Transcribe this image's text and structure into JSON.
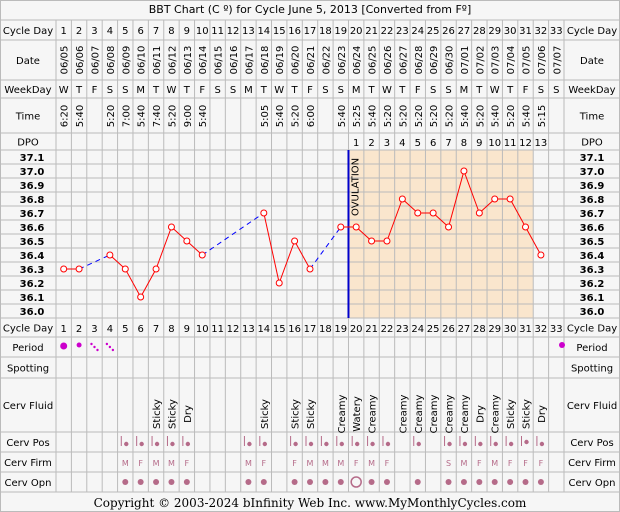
{
  "title": "BBT Chart (C º) for Cycle June 5, 2013  [Converted from Fº]",
  "footer": "Copyright © 2003-2024 bInfinity Web Inc.     www.MyMonthlyCycles.com",
  "row_labels": {
    "cycle_day": "Cycle Day",
    "date": "Date",
    "weekday": "WeekDay",
    "time": "Time",
    "dpo": "DPO",
    "period": "Period",
    "spotting": "Spotting",
    "cerv_fluid": "Cerv Fluid",
    "cerv_pos": "Cerv Pos",
    "cerv_firm": "Cerv Firm",
    "cerv_opn": "Cerv Opn"
  },
  "ovulation_label": "OVULATION",
  "colors": {
    "background": "#F6F6F6",
    "grid": "#BBBBBB",
    "luteal_fill": "#FAE6CD",
    "temp_line": "#FF0000",
    "marker_fill": "#FFFFFF",
    "gap_line": "#0000FF",
    "ovulation_line": "#0000CC",
    "period_dot": "#CC00CC",
    "symptom_dot": "#B56B89"
  },
  "chart_data": {
    "type": "line",
    "title": "BBT Chart (C º) for Cycle June 5, 2013  [Converted from Fº]",
    "xlabel": "Cycle Day",
    "ylabel": "",
    "ylim": [
      36.0,
      37.1
    ],
    "y_ticks": [
      36.0,
      36.1,
      36.2,
      36.3,
      36.4,
      36.5,
      36.6,
      36.7,
      36.8,
      36.9,
      37.0,
      37.1
    ],
    "grid": true,
    "ovulation_day": 19,
    "cycle_days": [
      1,
      2,
      3,
      4,
      5,
      6,
      7,
      8,
      9,
      10,
      11,
      12,
      13,
      14,
      15,
      16,
      17,
      18,
      19,
      20,
      21,
      22,
      23,
      24,
      25,
      26,
      27,
      28,
      29,
      30,
      31,
      32,
      33
    ],
    "dates": [
      "06/05",
      "06/06",
      "06/07",
      "06/08",
      "06/09",
      "06/10",
      "06/11",
      "06/12",
      "06/13",
      "06/14",
      "06/15",
      "06/16",
      "06/17",
      "06/18",
      "06/19",
      "06/20",
      "06/21",
      "06/22",
      "06/23",
      "06/24",
      "06/25",
      "06/26",
      "06/27",
      "06/28",
      "06/29",
      "06/30",
      "07/01",
      "07/02",
      "07/03",
      "07/04",
      "07/05",
      "07/06",
      "07/07"
    ],
    "weekdays": [
      "W",
      "T",
      "F",
      "S",
      "S",
      "M",
      "T",
      "W",
      "T",
      "F",
      "S",
      "S",
      "M",
      "T",
      "W",
      "T",
      "F",
      "S",
      "S",
      "M",
      "T",
      "W",
      "T",
      "F",
      "S",
      "S",
      "M",
      "T",
      "W",
      "T",
      "F",
      "S",
      "S"
    ],
    "times": [
      "6:20",
      "5:40",
      "",
      "5:20",
      "7:00",
      "5:40",
      "7:40",
      "5:20",
      "9:00",
      "5:40",
      "",
      "",
      "",
      "5:05",
      "5:40",
      "5:20",
      "6:00",
      "",
      "5:40",
      "5:25",
      "5:40",
      "5:20",
      "5:20",
      "5:20",
      "5:20",
      "5:20",
      "5:40",
      "5:20",
      "5:40",
      "5:20",
      "5:40",
      "5:15",
      ""
    ],
    "dpo": [
      "",
      "",
      "",
      "",
      "",
      "",
      "",
      "",
      "",
      "",
      "",
      "",
      "",
      "",
      "",
      "",
      "",
      "",
      "",
      "1",
      "2",
      "3",
      "4",
      "5",
      "6",
      "7",
      "8",
      "9",
      "10",
      "11",
      "12",
      "13",
      ""
    ],
    "series": [
      {
        "name": "",
        "values": [
          36.3,
          36.3,
          null,
          36.4,
          36.3,
          36.1,
          36.3,
          36.6,
          36.5,
          36.4,
          null,
          null,
          null,
          36.7,
          36.2,
          36.5,
          36.3,
          null,
          36.6,
          36.6,
          36.5,
          36.5,
          36.8,
          36.7,
          36.7,
          36.6,
          37.0,
          36.7,
          36.8,
          36.8,
          36.6,
          36.4,
          null
        ]
      }
    ],
    "period": [
      "heavy",
      "medium",
      "light",
      "light",
      "",
      "",
      "",
      "",
      "",
      "",
      "",
      "",
      "",
      "",
      "",
      "",
      "",
      "",
      "",
      "",
      "",
      "",
      "",
      "",
      "",
      "",
      "",
      "",
      "",
      "",
      "",
      "",
      ""
    ],
    "cerv_fluid": [
      "",
      "",
      "",
      "",
      "",
      "",
      "Sticky",
      "Sticky",
      "Dry",
      "",
      "",
      "",
      "",
      "Sticky",
      "",
      "Sticky",
      "Sticky",
      "",
      "Creamy",
      "Watery",
      "Creamy",
      "",
      "Creamy",
      "Creamy",
      "Creamy",
      "Creamy",
      "Creamy",
      "Dry",
      "Creamy",
      "Sticky",
      "Sticky",
      "Dry",
      ""
    ],
    "cerv_pos": [
      "",
      "",
      "",
      "",
      "low",
      "low",
      "low",
      "low",
      "low",
      "",
      "",
      "",
      "low",
      "low",
      "",
      "low",
      "low",
      "low",
      "low",
      "low",
      "low",
      "low",
      "",
      "low",
      "",
      "low",
      "low",
      "low",
      "low",
      "low",
      "medium",
      "low",
      ""
    ],
    "cerv_firm": [
      "",
      "",
      "",
      "",
      "M",
      "F",
      "M",
      "M",
      "F",
      "",
      "",
      "",
      "M",
      "F",
      "",
      "F",
      "M",
      "M",
      "M",
      "F",
      "M",
      "F",
      "",
      "",
      "",
      "S",
      "M",
      "F",
      "M",
      "F",
      "F",
      "F",
      ""
    ],
    "cerv_opn": [
      "",
      "",
      "",
      "",
      "closed",
      "closed",
      "closed",
      "closed",
      "closed",
      "",
      "",
      "",
      "closed",
      "closed",
      "",
      "closed",
      "closed",
      "closed",
      "closed",
      "open",
      "closed",
      "closed",
      "",
      "closed",
      "",
      "closed",
      "closed",
      "closed",
      "closed",
      "closed",
      "closed",
      "closed",
      ""
    ]
  }
}
